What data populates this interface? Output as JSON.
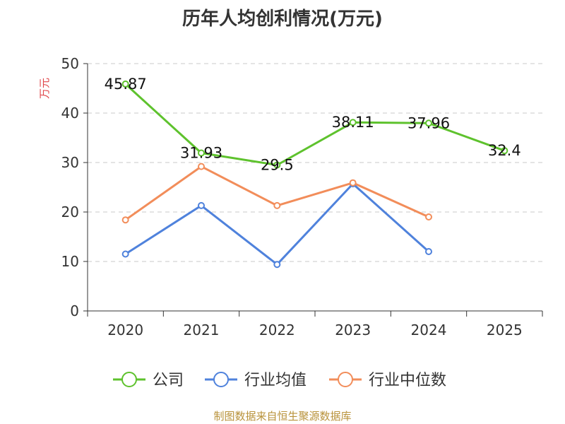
{
  "title": "历年人均创利情况(万元)",
  "source": "制图数据来自恒生聚源数据库",
  "chart_data": {
    "type": "line",
    "title": "历年人均创利情况(万元)",
    "ylabel": "万元",
    "xlabel": "",
    "categories": [
      "2020",
      "2021",
      "2022",
      "2023",
      "2024",
      "2025"
    ],
    "ylim": [
      0,
      50
    ],
    "yticks": [
      0,
      10,
      20,
      30,
      40,
      50
    ],
    "grid": true,
    "legend_position": "bottom",
    "series": [
      {
        "name": "公司",
        "color": "#5ec22d",
        "values": [
          45.87,
          31.93,
          29.5,
          38.11,
          37.96,
          32.4
        ],
        "data_labels": [
          "45.87",
          "31.93",
          "29.5",
          "38.11",
          "37.96",
          "32.4"
        ]
      },
      {
        "name": "行业均值",
        "color": "#4f82dc",
        "values": [
          11.5,
          21.3,
          9.4,
          25.7,
          12.0,
          null
        ]
      },
      {
        "name": "行业中位数",
        "color": "#f28d5a",
        "values": [
          18.4,
          29.2,
          21.3,
          25.9,
          19.0,
          null
        ]
      }
    ]
  }
}
